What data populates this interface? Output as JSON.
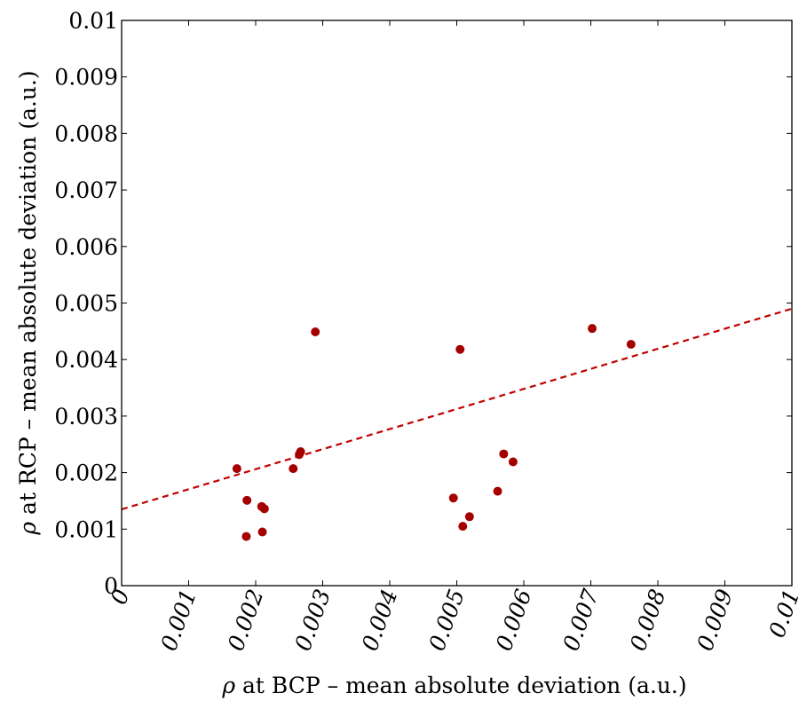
{
  "chart_data": {
    "type": "scatter",
    "xlabel_symbol": "ρ",
    "xlabel_text": " at BCP – mean absolute deviation (a.u.)",
    "ylabel_symbol": "ρ",
    "ylabel_text": " at RCP – mean absolute deviation (a.u.)",
    "xlim": [
      0,
      0.01
    ],
    "ylim": [
      0,
      0.01
    ],
    "x_ticks": [
      "0",
      "0.001",
      "0.002",
      "0.003",
      "0.004",
      "0.005",
      "0.006",
      "0.007",
      "0.008",
      "0.009",
      "0.01"
    ],
    "y_ticks": [
      "0",
      "0.001",
      "0.002",
      "0.003",
      "0.004",
      "0.005",
      "0.006",
      "0.007",
      "0.008",
      "0.009",
      "0.01"
    ],
    "grid": false,
    "marker_color": "#a50000",
    "trend_color": "#c00000",
    "points": [
      {
        "x": 0.00172,
        "y": 0.00207
      },
      {
        "x": 0.00186,
        "y": 0.00087
      },
      {
        "x": 0.00187,
        "y": 0.00151
      },
      {
        "x": 0.00209,
        "y": 0.0014
      },
      {
        "x": 0.0021,
        "y": 0.00095
      },
      {
        "x": 0.00213,
        "y": 0.00136
      },
      {
        "x": 0.00256,
        "y": 0.00207
      },
      {
        "x": 0.00265,
        "y": 0.00232
      },
      {
        "x": 0.00267,
        "y": 0.00237
      },
      {
        "x": 0.00289,
        "y": 0.00449
      },
      {
        "x": 0.00495,
        "y": 0.00155
      },
      {
        "x": 0.00505,
        "y": 0.00418
      },
      {
        "x": 0.00509,
        "y": 0.00105
      },
      {
        "x": 0.00519,
        "y": 0.00122
      },
      {
        "x": 0.00561,
        "y": 0.00167
      },
      {
        "x": 0.0057,
        "y": 0.00233
      },
      {
        "x": 0.00584,
        "y": 0.00219
      },
      {
        "x": 0.00702,
        "y": 0.00455
      },
      {
        "x": 0.0076,
        "y": 0.00427
      }
    ],
    "trend_line": {
      "style": "dashed",
      "x": [
        0,
        0.01
      ],
      "y": [
        0.00135,
        0.0049
      ]
    }
  }
}
